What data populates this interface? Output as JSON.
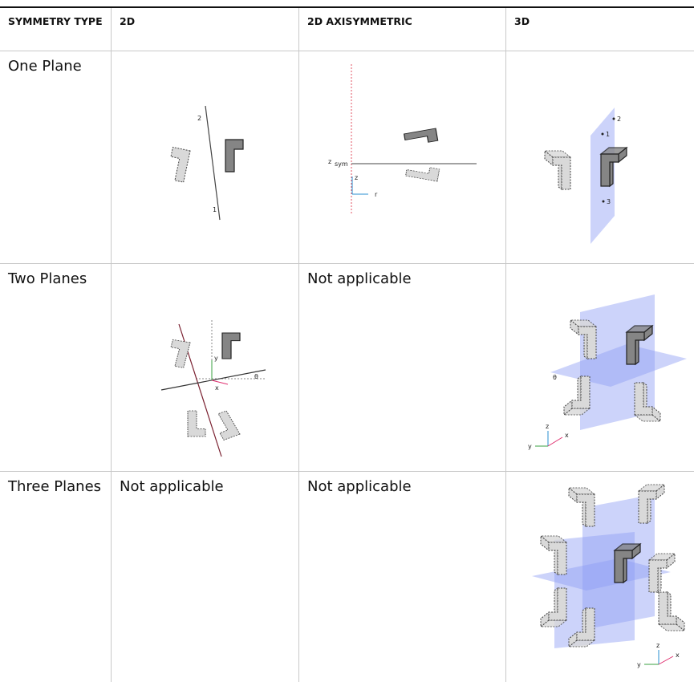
{
  "table": {
    "header": [
      "SYMMETRY TYPE",
      "2D",
      "2D AXISYMMETRIC",
      "3D"
    ],
    "rows": [
      {
        "label": "One Plane",
        "figure_2d": {
          "labels": [
            "2",
            "1"
          ]
        },
        "figure_axi": {
          "labels": [
            "z",
            "sym",
            "z",
            "r"
          ]
        },
        "figure_3d": {
          "labels": [
            "2",
            "1",
            "3"
          ]
        }
      },
      {
        "label": "Two Planes",
        "figure_2d": {
          "labels": [
            "y",
            "x",
            "θ"
          ]
        },
        "axi": "Not applicable",
        "figure_3d": {
          "labels": [
            "θ",
            "z",
            "y",
            "x"
          ]
        }
      },
      {
        "label": "Three Planes",
        "2d": "Not applicable",
        "axi": "Not applicable",
        "figure_3d": {
          "labels": [
            "z",
            "y",
            "x"
          ]
        }
      }
    ]
  }
}
